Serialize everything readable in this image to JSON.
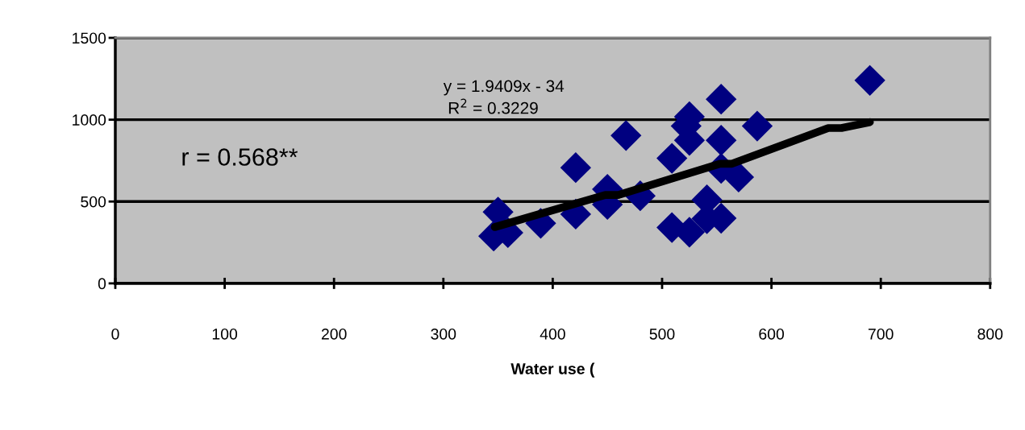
{
  "chart_data": {
    "type": "scatter",
    "xlabel": "Water use (",
    "xlim": [
      0,
      800
    ],
    "xticks": [
      0,
      100,
      200,
      300,
      400,
      500,
      600,
      700,
      800
    ],
    "ylim": [
      0,
      1500
    ],
    "yticks": [
      0,
      500,
      1000,
      1500
    ],
    "grid": "y",
    "series": [
      {
        "marker": "diamond",
        "color": "#000080",
        "x": [
          350,
          346,
          359,
          389,
          421,
          421,
          450,
          450,
          467,
          480,
          509,
          509,
          525,
          522,
          525,
          525,
          541,
          541,
          554,
          554,
          554,
          554,
          570,
          587,
          690
        ],
        "values": [
          436,
          289,
          310,
          367,
          707,
          423,
          575,
          482,
          903,
          535,
          764,
          341,
          1018,
          961,
          874,
          313,
          510,
          395,
          1125,
          874,
          702,
          398,
          649,
          961,
          1240
        ]
      },
      {
        "type": "line",
        "marker": "none",
        "color": "#000000",
        "x": [
          347,
          448,
          460,
          553,
          564,
          652,
          664,
          690
        ],
        "values": [
          344,
          540,
          540,
          731,
          731,
          949,
          949,
          985
        ]
      }
    ],
    "annotations": [
      "y = 1.9409x - 34",
      "R$^{2}$ = 0.3229",
      "r = 0.568**"
    ]
  }
}
